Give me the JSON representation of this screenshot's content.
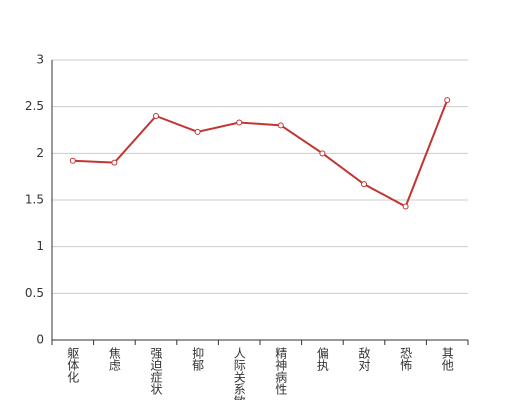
{
  "chart_data": {
    "type": "line",
    "categories": [
      "躯体化",
      "焦虑",
      "强迫症状",
      "抑郁",
      "人际关系敏感",
      "精神病性",
      "偏执",
      "敌对",
      "恐怖",
      "其他"
    ],
    "values": [
      1.92,
      1.9,
      2.4,
      2.23,
      2.33,
      2.3,
      2.0,
      1.67,
      1.43,
      2.57
    ],
    "color": "#c23531",
    "ylim": [
      0,
      3
    ],
    "yticks": [
      0,
      0.5,
      1,
      1.5,
      2,
      2.5,
      3
    ],
    "grid": true
  }
}
